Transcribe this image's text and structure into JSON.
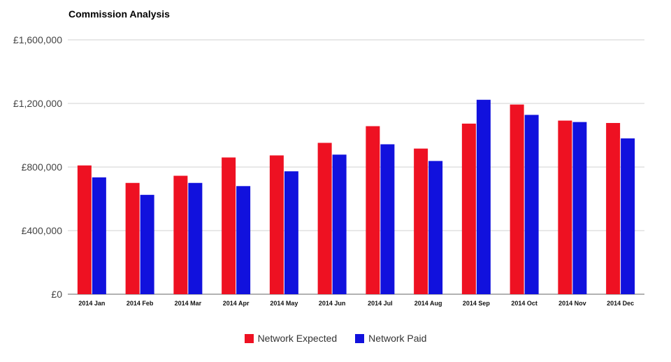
{
  "chart_data": {
    "type": "bar",
    "title": "Commission Analysis",
    "xlabel": "",
    "ylabel": "",
    "categories": [
      "2014 Jan",
      "2014 Feb",
      "2014 Mar",
      "2014 Apr",
      "2014 May",
      "2014 Jun",
      "2014 Jul",
      "2014 Aug",
      "2014 Sep",
      "2014 Oct",
      "2014 Nov",
      "2014 Dec"
    ],
    "series": [
      {
        "name": "Network Expected",
        "color": "#ee1122",
        "values": [
          810000,
          700000,
          745000,
          860000,
          873000,
          952000,
          1057000,
          916000,
          1073000,
          1193000,
          1092000,
          1077000
        ]
      },
      {
        "name": "Network Paid",
        "color": "#1111dd",
        "values": [
          735000,
          625000,
          700000,
          680000,
          773000,
          878000,
          943000,
          838000,
          1223000,
          1128000,
          1083000,
          980000
        ]
      }
    ],
    "ylim": [
      0,
      1600000
    ],
    "yticks": [
      0,
      400000,
      800000,
      1200000,
      1600000
    ],
    "ytick_labels": [
      "£0",
      "£400,000",
      "£800,000",
      "£1,200,000",
      "£1,600,000"
    ],
    "grid": true,
    "legend_position": "bottom-center"
  }
}
